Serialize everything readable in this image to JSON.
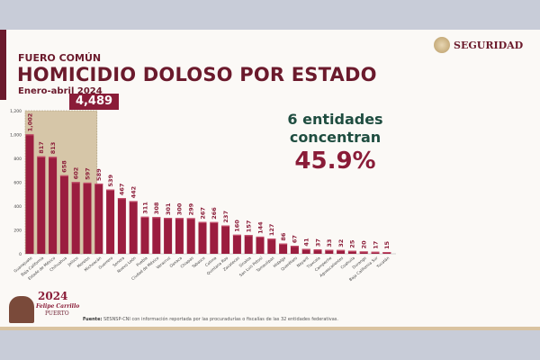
{
  "header": {
    "kicker": "FUERO COMÚN",
    "title": "HOMICIDIO DOLOSO POR ESTADO",
    "subtitle": "Enero-abril 2024"
  },
  "logo": {
    "text": "SEGURIDAD"
  },
  "callout": {
    "line1": "6 entidades",
    "line2": "concentran",
    "percent": "45.9%",
    "total": "4,489"
  },
  "footer": {
    "source_label": "Fuente:",
    "source_text": " SESNSP-CNI con información reportada por las procuradurías o fiscalías de las 32 entidades federativas."
  },
  "branding": {
    "year": "2024",
    "name": "Felipe Carrillo",
    "place": "PUERTO"
  },
  "colors": {
    "bar": "#9b1d3f",
    "accent": "#6b1a2c",
    "highlight": "#d6c6a8",
    "green": "#1f4d40"
  },
  "chart_data": {
    "type": "bar",
    "title": "HOMICIDIO DOLOSO POR ESTADO",
    "ylim": [
      0,
      1200
    ],
    "yticks": [
      0,
      200,
      400,
      600,
      800,
      1000,
      1200
    ],
    "ytick_labels": [
      "0",
      "200",
      "400",
      "600",
      "800",
      "1,000",
      "1,200"
    ],
    "highlighted_count": 6,
    "categories": [
      "Guanajuato",
      "Baja California",
      "Estado de México",
      "Chihuahua",
      "Jalisco",
      "Morelos",
      "Michoacán",
      "Guerrero",
      "Sonora",
      "Nuevo León",
      "Puebla",
      "Ciudad de México",
      "Veracruz",
      "Oaxaca",
      "Chiapas",
      "Tabasco",
      "Colima",
      "Quintana Roo",
      "Zacatecas",
      "Sinaloa",
      "San Luis Potosí",
      "Tamaulipas",
      "Hidalgo",
      "Querétaro",
      "Nayarit",
      "Tlaxcala",
      "Campeche",
      "Aguascalientes",
      "Coahuila",
      "Durango",
      "Baja California Sur",
      "Yucatán"
    ],
    "values": [
      1002,
      817,
      813,
      658,
      602,
      597,
      589,
      539,
      467,
      442,
      311,
      308,
      301,
      300,
      299,
      267,
      266,
      237,
      160,
      157,
      144,
      127,
      86,
      67,
      41,
      37,
      33,
      32,
      25,
      20,
      17,
      15
    ],
    "value_labels": [
      "1,002",
      "817",
      "813",
      "658",
      "602",
      "597",
      "589",
      "539",
      "467",
      "442",
      "311",
      "308",
      "301",
      "300",
      "299",
      "267",
      "266",
      "237",
      "160",
      "157",
      "144",
      "127",
      "86",
      "67",
      "41",
      "37",
      "33",
      "32",
      "25",
      "20",
      "17",
      "15"
    ]
  }
}
